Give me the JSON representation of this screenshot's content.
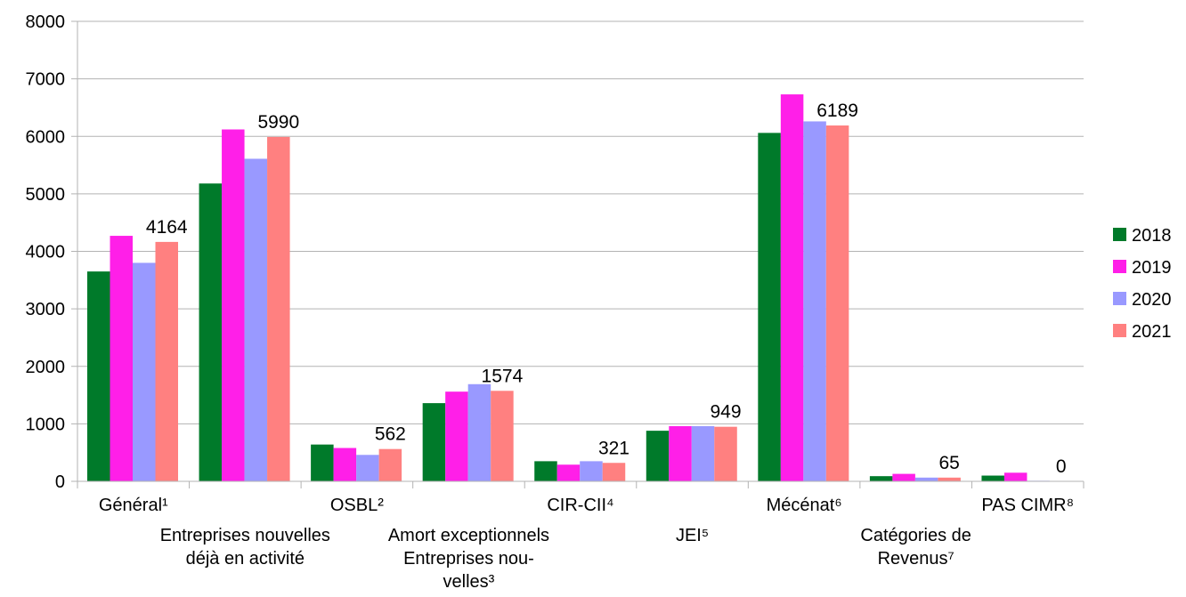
{
  "chart_data": {
    "type": "bar",
    "categories": [
      [
        "Général¹"
      ],
      [
        "Entreprises nouvelles",
        "déjà en activité"
      ],
      [
        "OSBL²"
      ],
      [
        "Amort exceptionnels",
        "Entreprises nou-",
        "velles³"
      ],
      [
        "CIR-CII⁴"
      ],
      [
        "JEI⁵"
      ],
      [
        "Mécénat⁶"
      ],
      [
        "Catégories de",
        "Revenus⁷"
      ],
      [
        "PAS CIMR⁸"
      ]
    ],
    "series": [
      {
        "name": "2018",
        "color": "#007a2a",
        "values": [
          3650,
          5180,
          640,
          1360,
          350,
          880,
          6060,
          90,
          100
        ]
      },
      {
        "name": "2019",
        "color": "#ff1fe8",
        "values": [
          4270,
          6120,
          580,
          1560,
          290,
          960,
          6730,
          130,
          150
        ]
      },
      {
        "name": "2020",
        "color": "#9999ff",
        "values": [
          3800,
          5610,
          460,
          1690,
          350,
          960,
          6260,
          65,
          10
        ]
      },
      {
        "name": "2021",
        "color": "#ff8080",
        "values": [
          4164,
          5990,
          562,
          1574,
          321,
          949,
          6189,
          65,
          0
        ]
      }
    ],
    "data_labels": [
      "4164",
      "5990",
      "562",
      "1574",
      "321",
      "949",
      "6189",
      "65",
      "0"
    ],
    "ylim": [
      0,
      8000
    ],
    "yticks": [
      "0",
      "1000",
      "2000",
      "3000",
      "4000",
      "5000",
      "6000",
      "7000",
      "8000"
    ],
    "grid": true,
    "legend_position": "right"
  }
}
